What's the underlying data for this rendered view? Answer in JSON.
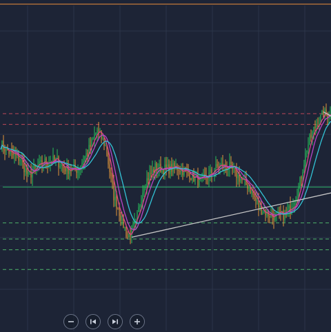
{
  "colors": {
    "background": "#1d2436",
    "grid": "#2c3549",
    "top_border": "#c47a3a",
    "candle_up": "#27c15a",
    "candle_down": "#e2963a",
    "ma_fast": "#e0428a",
    "ma_fast2": "#b646c8",
    "ma_slow": "#33c3d6",
    "red_dashed": "#c0495a",
    "green_dashed": "#4fb36a",
    "green_solid": "#2fb56a",
    "trendline": "#c8c8c8"
  },
  "toolbar": {
    "buttons": [
      {
        "name": "zoom-out-button",
        "icon": "minus-icon"
      },
      {
        "name": "step-back-button",
        "icon": "skip-back-icon"
      },
      {
        "name": "step-forward-button",
        "icon": "skip-forward-icon"
      },
      {
        "name": "zoom-in-button",
        "icon": "plus-icon"
      }
    ]
  },
  "chart_data": {
    "type": "candlestick",
    "grid": true,
    "ylim": [
      0,
      100
    ],
    "price_anchors": [
      [
        0,
        58
      ],
      [
        8,
        52
      ],
      [
        14,
        50
      ],
      [
        20,
        40
      ],
      [
        26,
        45
      ],
      [
        32,
        48
      ],
      [
        40,
        49
      ],
      [
        48,
        44
      ],
      [
        56,
        44
      ],
      [
        64,
        55
      ],
      [
        70,
        66
      ],
      [
        76,
        57
      ],
      [
        82,
        29
      ],
      [
        86,
        20
      ],
      [
        92,
        6
      ],
      [
        98,
        14
      ],
      [
        104,
        36
      ],
      [
        112,
        45
      ],
      [
        120,
        44
      ],
      [
        128,
        45
      ],
      [
        136,
        42
      ],
      [
        144,
        37
      ],
      [
        150,
        40
      ],
      [
        158,
        46
      ],
      [
        166,
        45
      ],
      [
        172,
        40
      ],
      [
        180,
        34
      ],
      [
        188,
        22
      ],
      [
        196,
        18
      ],
      [
        204,
        18
      ],
      [
        210,
        22
      ],
      [
        216,
        33
      ],
      [
        222,
        56
      ],
      [
        228,
        68
      ],
      [
        234,
        75
      ],
      [
        240,
        74
      ]
    ],
    "horizontal_levels": [
      {
        "style": "red-dashed",
        "value": 75
      },
      {
        "style": "red-dashed",
        "value": 69
      },
      {
        "style": "green-solid",
        "value": 34
      },
      {
        "style": "green-dashed",
        "value": 14
      },
      {
        "style": "green-dashed",
        "value": 5
      },
      {
        "style": "green-dashed",
        "value": -1
      },
      {
        "style": "green-dashed",
        "value": -12
      }
    ],
    "trendlines": [
      {
        "from": [
          95,
          6
        ],
        "to": [
          240,
          31
        ]
      },
      {
        "from": [
          234,
          76
        ],
        "to": [
          240,
          73
        ]
      }
    ]
  }
}
